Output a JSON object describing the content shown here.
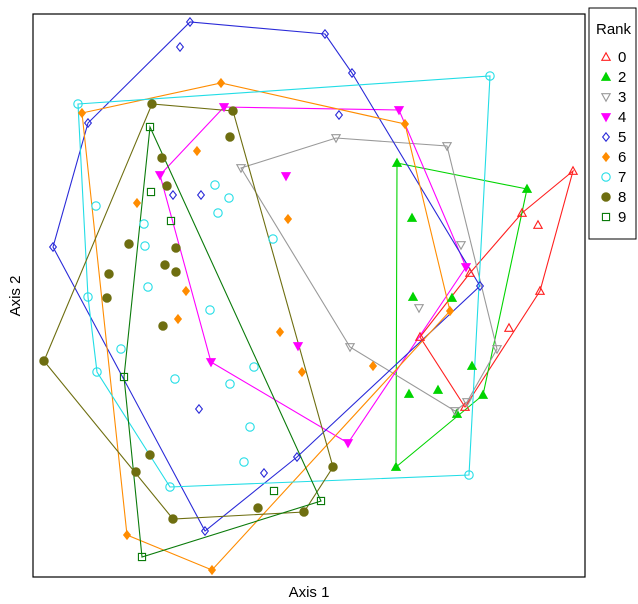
{
  "chart_data": {
    "type": "scatter",
    "x_label": "Axis 1",
    "y_label": "Axis 2",
    "legend_title": "Rank",
    "legend": "right",
    "xlim": [
      0,
      552
    ],
    "ylim": [
      0,
      563
    ],
    "series": [
      {
        "name": "0",
        "color": "#ff2020",
        "marker": "triangle-up-open",
        "x": [
          540,
          489,
          505,
          507,
          476,
          437,
          387,
          432
        ],
        "y": [
          406,
          364,
          352,
          286,
          249,
          304,
          240,
          170
        ]
      },
      {
        "name": "2",
        "color": "#00d400",
        "marker": "triangle-up-filled",
        "x": [
          364,
          494,
          379,
          380,
          419,
          439,
          450,
          376,
          405,
          363,
          424
        ],
        "y": [
          414,
          388,
          359,
          280,
          279,
          211,
          182,
          183,
          187,
          110,
          163
        ]
      },
      {
        "name": "3",
        "color": "#999999",
        "marker": "triangle-down-open",
        "x": [
          208,
          303,
          414,
          428,
          386,
          464,
          317,
          422,
          434
        ],
        "y": [
          409,
          439,
          431,
          332,
          269,
          228,
          230,
          166,
          175
        ]
      },
      {
        "name": "4",
        "color": "#ff00ff",
        "marker": "triangle-down-filled",
        "x": [
          127,
          191,
          253,
          366,
          433,
          265,
          178,
          315
        ],
        "y": [
          402,
          470,
          401,
          467,
          310,
          231,
          215,
          134
        ]
      },
      {
        "name": "5",
        "color": "#2a2ad8",
        "marker": "diamond-open",
        "x": [
          157,
          292,
          147,
          319,
          55,
          20,
          140,
          168,
          306,
          447,
          166,
          264,
          172,
          231
        ],
        "y": [
          555,
          543,
          530,
          504,
          454,
          330,
          382,
          382,
          462,
          291,
          168,
          120,
          46,
          104
        ]
      },
      {
        "name": "6",
        "color": "#ff8c00",
        "marker": "diamond-filled",
        "x": [
          372,
          188,
          49,
          164,
          104,
          255,
          145,
          247,
          269,
          417,
          340,
          94,
          179,
          153
        ],
        "y": [
          453,
          494,
          464,
          426,
          374,
          358,
          258,
          245,
          205,
          266,
          211,
          42,
          7,
          286
        ]
      },
      {
        "name": "7",
        "color": "#22dde6",
        "marker": "circle-open",
        "x": [
          45,
          457,
          63,
          196,
          185,
          240,
          112,
          55,
          115,
          177,
          88,
          64,
          142,
          221,
          197,
          217,
          211,
          137,
          436,
          182,
          111
        ],
        "y": [
          473,
          501,
          371,
          379,
          364,
          338,
          331,
          280,
          290,
          267,
          228,
          205,
          198,
          210,
          193,
          150,
          115,
          90,
          102,
          392,
          353
        ]
      },
      {
        "name": "8",
        "color": "#6e6e10",
        "marker": "circle-filled",
        "x": [
          200,
          119,
          197,
          129,
          134,
          76,
          11,
          132,
          143,
          143,
          130,
          74,
          117,
          103,
          140,
          225,
          300,
          271,
          96
        ],
        "y": [
          466,
          473,
          440,
          419,
          391,
          303,
          216,
          312,
          305,
          329,
          251,
          279,
          122,
          105,
          58,
          69,
          110,
          65,
          333
        ]
      },
      {
        "name": "9",
        "color": "#0a7a0a",
        "marker": "square-open",
        "x": [
          117,
          118,
          138,
          91,
          241,
          288,
          109
        ],
        "y": [
          450,
          385,
          356,
          200,
          86,
          76,
          20
        ]
      }
    ]
  }
}
